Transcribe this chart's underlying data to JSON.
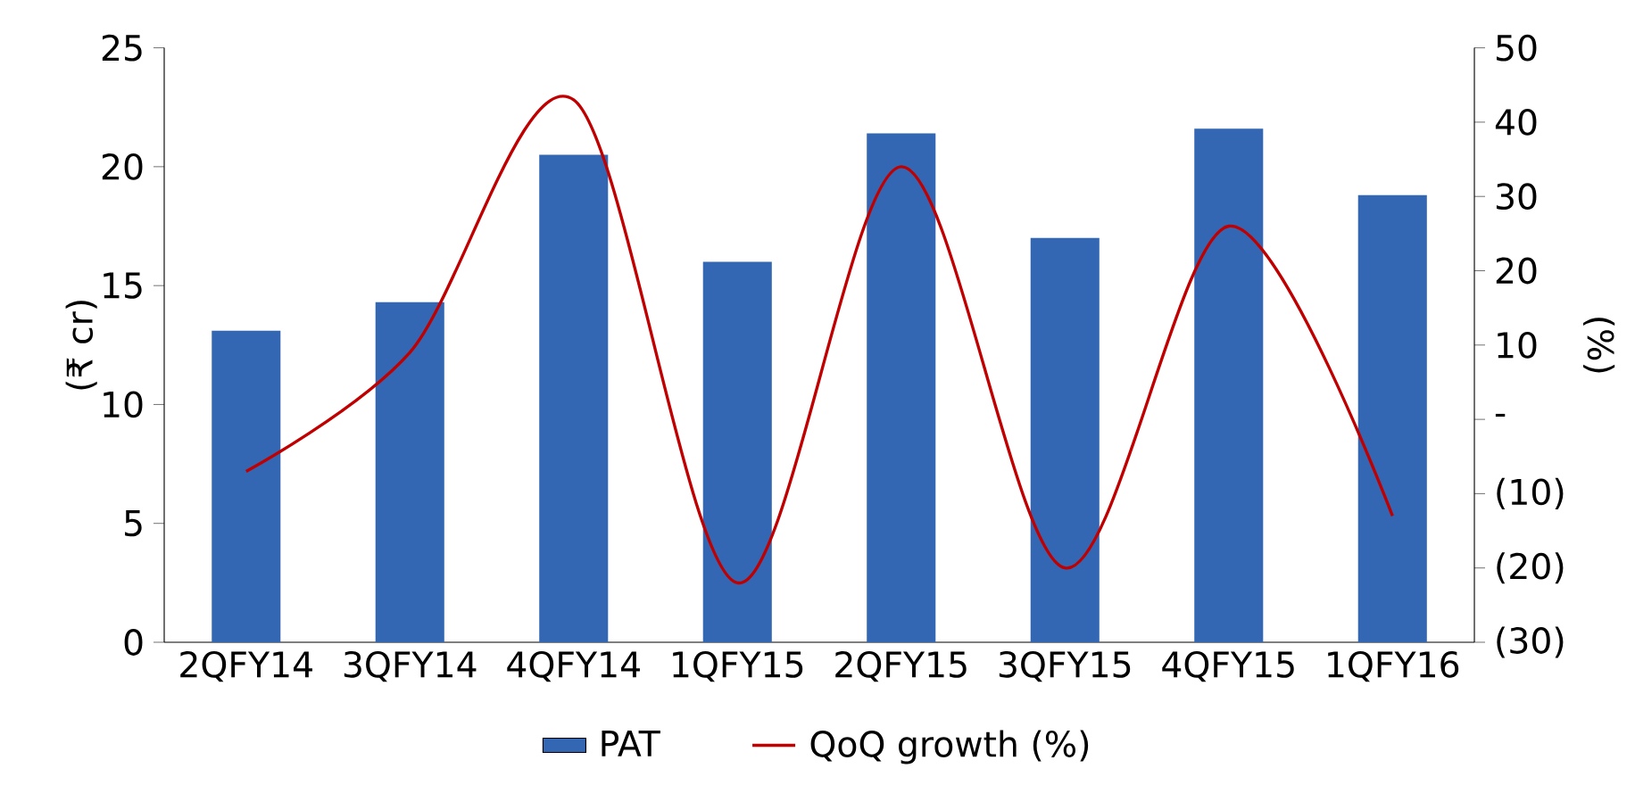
{
  "chart_data": {
    "type": "bar",
    "categories": [
      "2QFY14",
      "3QFY14",
      "4QFY14",
      "1QFY15",
      "2QFY15",
      "3QFY15",
      "4QFY15",
      "1QFY16"
    ],
    "series": [
      {
        "name": "PAT",
        "color": "#3366b3",
        "values": [
          13.1,
          14.3,
          20.5,
          16.0,
          21.4,
          17.0,
          21.6,
          18.8
        ]
      },
      {
        "name": "QoQ growth (%)",
        "type": "line",
        "axis": "y2",
        "color": "#c00000",
        "values": [
          -7,
          9,
          43,
          -22,
          34,
          -20,
          26,
          -13
        ]
      }
    ],
    "ylabel": "(₹ cr)",
    "y2label": "(%)",
    "ylim": [
      0,
      25
    ],
    "yticks": [
      0,
      5,
      10,
      15,
      20,
      25
    ],
    "y2lim": [
      -30,
      50
    ],
    "y2ticks": [
      {
        "value": -30,
        "label": "(30)"
      },
      {
        "value": -20,
        "label": "(20)"
      },
      {
        "value": -10,
        "label": "(10)"
      },
      {
        "value": 0,
        "label": "-"
      },
      10,
      20,
      30,
      40,
      50
    ],
    "legend": "bottom",
    "grid": false
  }
}
